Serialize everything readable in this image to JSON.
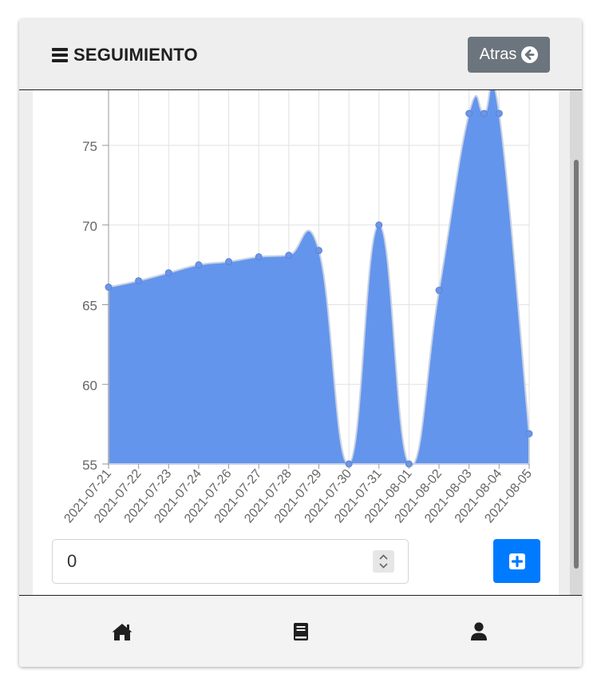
{
  "header": {
    "title": "SEGUIMIENTO",
    "menu_icon": "bars-icon",
    "back_button": {
      "label": "Atras",
      "icon": "arrow-circle-left-icon",
      "color": "#6c757d"
    }
  },
  "chart_data": {
    "type": "area",
    "categories": [
      "2021-07-21",
      "2021-07-22",
      "2021-07-23",
      "2021-07-24",
      "2021-07-26",
      "2021-07-27",
      "2021-07-28",
      "2021-07-29",
      "2021-07-30",
      "2021-07-31",
      "2021-08-01",
      "2021-08-02",
      "2021-08-03",
      "2021-08-04",
      "2021-08-05"
    ],
    "series": [
      {
        "values": [
          66.1,
          66.5,
          67.0,
          67.5,
          67.7,
          68.0,
          68.1,
          68.4,
          55,
          70,
          55,
          65.9,
          77,
          77,
          56.9
        ],
        "color": "#6495ed"
      }
    ],
    "extra_points": [
      {
        "between": [
          "2021-08-03",
          "2021-08-04"
        ],
        "y": 77
      }
    ],
    "ylim": [
      55,
      77
    ],
    "yticks": [
      55,
      60,
      65,
      70,
      75
    ],
    "grid": true,
    "legend": "none"
  },
  "input": {
    "value": "0",
    "type": "number"
  },
  "add_button": {
    "icon": "plus-square-icon",
    "color": "#007bff"
  },
  "footer": {
    "items": [
      {
        "name": "home",
        "icon": "home-icon"
      },
      {
        "name": "book",
        "icon": "book-icon"
      },
      {
        "name": "user",
        "icon": "user-icon"
      }
    ]
  }
}
